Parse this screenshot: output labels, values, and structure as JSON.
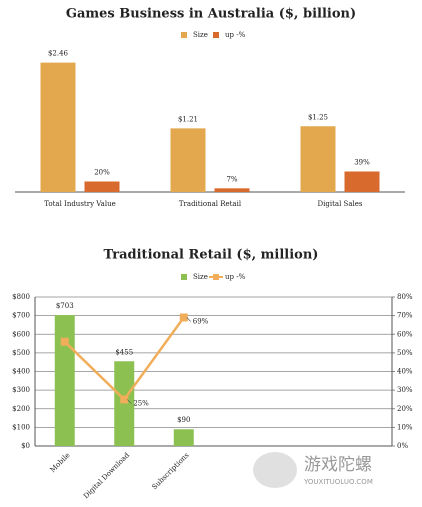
{
  "chart_data": [
    {
      "type": "bar",
      "title": "Games Business in Australia ($, billion)",
      "categories": [
        "Total Industry Value",
        "Traditional Retail",
        "Digital Sales"
      ],
      "series": [
        {
          "name": "Size",
          "color": "#e3a84d",
          "values": [
            2.46,
            1.21,
            1.25
          ],
          "value_labels": [
            "$2.46",
            "$1.21",
            "$1.25"
          ]
        },
        {
          "name": "up -%",
          "color": "#d96a2e",
          "axis": "y2",
          "values": [
            20,
            7,
            39
          ],
          "value_labels": [
            "20%",
            "7%",
            "39%"
          ]
        }
      ],
      "ylim": [
        0,
        2.7
      ],
      "y2lim": [
        0,
        270
      ],
      "grid": false,
      "legend": "top"
    },
    {
      "type": "combo",
      "title": "Traditional Retail ($, million)",
      "categories": [
        "Mobile",
        "Digital Download",
        "Subscriptions",
        null,
        null,
        null
      ],
      "series": [
        {
          "name": "Size",
          "type": "bar",
          "color": "#8cc152",
          "values": [
            703,
            455,
            90,
            null,
            null,
            null
          ],
          "value_labels": [
            "$703",
            "$455",
            "$90",
            null,
            null,
            null
          ]
        },
        {
          "name": "up -%",
          "type": "line",
          "color": "#f0ad5a",
          "axis": "y2",
          "values": [
            56,
            25,
            69,
            null,
            null,
            null
          ],
          "value_labels": [
            null,
            "25%",
            "69%",
            null,
            null,
            null
          ]
        }
      ],
      "ylim": [
        0,
        800
      ],
      "yticks": [
        {
          "value": 0,
          "label": "$0"
        },
        {
          "value": 100,
          "label": "$100"
        },
        {
          "value": 200,
          "label": "$200"
        },
        {
          "value": 300,
          "label": "$300"
        },
        {
          "value": 400,
          "label": "$400"
        },
        {
          "value": 500,
          "label": "$500"
        },
        {
          "value": 600,
          "label": "$600"
        },
        {
          "value": 700,
          "label": "$700"
        },
        {
          "value": 800,
          "label": "$800"
        }
      ],
      "y2lim": [
        0,
        80
      ],
      "y2ticks": [
        {
          "value": 0,
          "label": "0%"
        },
        {
          "value": 10,
          "label": "10%"
        },
        {
          "value": 20,
          "label": "20%"
        },
        {
          "value": 30,
          "label": "30%"
        },
        {
          "value": 40,
          "label": "40%"
        },
        {
          "value": 50,
          "label": "50%"
        },
        {
          "value": 60,
          "label": "60%"
        },
        {
          "value": 70,
          "label": "70%"
        },
        {
          "value": 80,
          "label": "80%"
        }
      ],
      "grid": true,
      "legend": "top"
    }
  ],
  "watermark": {
    "text": "游戏陀螺",
    "url": "YOUXITUOLUO.COM"
  }
}
